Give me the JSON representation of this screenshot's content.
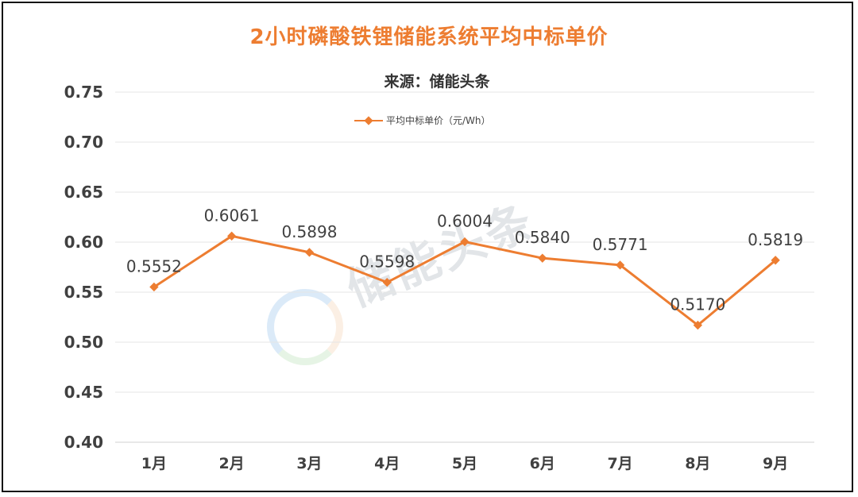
{
  "chart_data": {
    "type": "line",
    "title": "2小时磷酸铁锂储能系统平均中标单价",
    "subtitle": "来源：储能头条",
    "categories": [
      "1月",
      "2月",
      "3月",
      "4月",
      "5月",
      "6月",
      "7月",
      "8月",
      "9月"
    ],
    "series": [
      {
        "name": "平均中标单价（元/Wh）",
        "values": [
          0.5552,
          0.6061,
          0.5898,
          0.5598,
          0.6004,
          0.584,
          0.5771,
          0.517,
          0.5819
        ],
        "labels": [
          "0.5552",
          "0.6061",
          "0.5898",
          "0.5598",
          "0.6004",
          "0.5840",
          "0.5771",
          "0.5170",
          "0.5819"
        ]
      }
    ],
    "ylim": [
      0.4,
      0.75
    ],
    "yticks": [
      "0.40",
      "0.45",
      "0.50",
      "0.55",
      "0.60",
      "0.65",
      "0.70",
      "0.75"
    ],
    "xlabel": "",
    "ylabel": "",
    "grid": true,
    "legend": "top-center",
    "colors": {
      "line": "#ED7D31",
      "title": "#ED7D31",
      "grid": "#e6e6e6"
    },
    "watermark": "储能头条"
  }
}
